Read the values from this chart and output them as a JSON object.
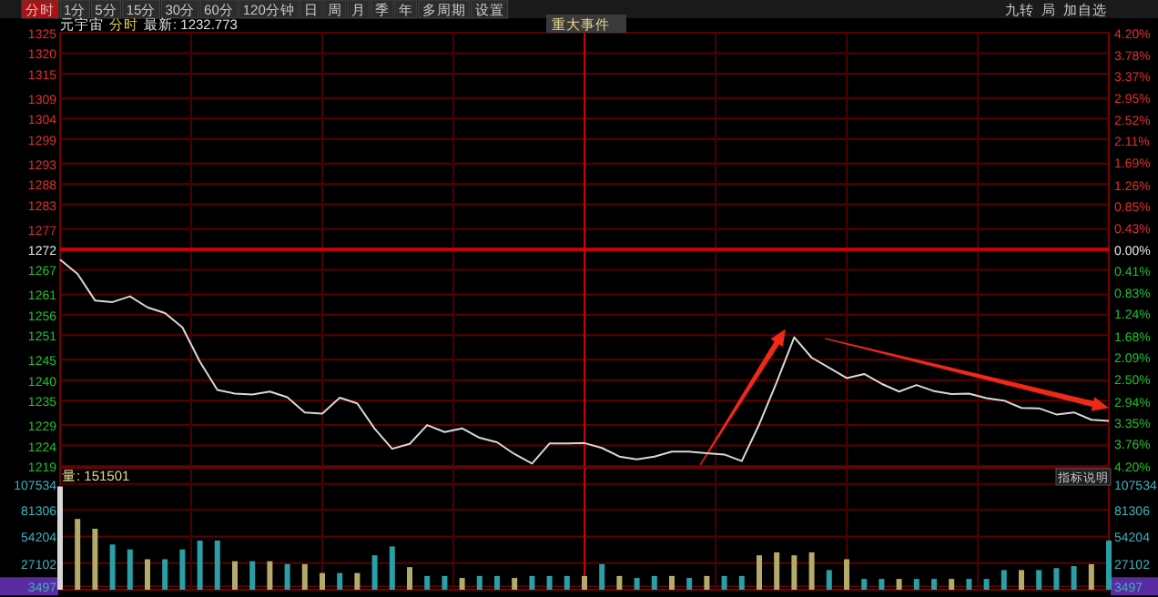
{
  "chart_data": [
    {
      "type": "line",
      "title": "元宇宙",
      "subtitle": "分时",
      "annotations": [
        "分时",
        "1分",
        "5分",
        "15分",
        "30分",
        "60分",
        "120分钟",
        "日",
        "周",
        "月",
        "季",
        "年",
        "多周期",
        "设置",
        "最新: 1232.773",
        "重大事件",
        "九转",
        "局",
        "加自选"
      ],
      "categories": [
        null,
        null,
        null,
        null,
        null,
        null,
        null,
        null,
        null,
        null,
        null,
        null,
        null,
        null,
        null,
        null,
        null,
        null,
        null,
        null,
        null,
        null,
        null,
        null,
        null,
        null,
        null,
        null,
        null,
        null,
        null,
        null,
        null,
        null,
        null,
        null,
        null,
        null,
        null,
        null,
        null,
        null,
        null,
        null,
        null,
        null,
        null,
        null,
        null,
        null,
        null,
        null,
        null,
        null,
        null,
        null,
        null,
        null,
        null,
        null,
        null
      ],
      "series": [
        {
          "color": "#d8d8d8",
          "values": [
            1269.5,
            1266.0,
            1259.5,
            1259.1,
            1260.5,
            1257.8,
            1256.4,
            1252.9,
            1244.5,
            1237.6,
            1236.7,
            1236.5,
            1237.2,
            1235.8,
            1232.1,
            1231.8,
            1235.7,
            1234.3,
            1228.1,
            1223.2,
            1224.4,
            1229.0,
            1227.3,
            1228.2,
            1225.9,
            1224.8,
            1221.9,
            1219.6,
            1224.5,
            1224.5,
            1224.6,
            1223.4,
            1221.3,
            1220.6,
            1221.3,
            1222.5,
            1222.5,
            1222.1,
            1221.8,
            1220.2,
            1229.2,
            1239.5,
            1250.5,
            1245.5,
            1243.0,
            1240.5,
            1241.5,
            1239.1,
            1237.2,
            1238.8,
            1237.3,
            1236.6,
            1236.7,
            1235.6,
            1235.0,
            1233.2,
            1233.1,
            1231.6,
            1232.1,
            1230.3,
            1230.0
          ]
        }
      ],
      "ylim": [
        1219,
        1325
      ],
      "yticks": [
        1219,
        1224,
        1229,
        1235,
        1240,
        1245,
        1251,
        1256,
        1261,
        1267,
        1272,
        1277,
        1283,
        1288,
        1293,
        1299,
        1304,
        1309,
        1315,
        1320,
        1325
      ],
      "y2lim": [
        -4.2,
        4.2
      ],
      "y2ticks": [
        {
          "value": -4.2,
          "label": "4.20%"
        },
        {
          "value": -3.76,
          "label": "3.76%"
        },
        {
          "value": -3.35,
          "label": "3.35%"
        },
        {
          "value": -2.94,
          "label": "2.94%"
        },
        {
          "value": -2.5,
          "label": "2.50%"
        },
        {
          "value": -2.09,
          "label": "2.09%"
        },
        {
          "value": -1.68,
          "label": "1.68%"
        },
        {
          "value": -1.24,
          "label": "1.24%"
        },
        {
          "value": -0.83,
          "label": "0.83%"
        },
        {
          "value": -0.41,
          "label": "0.41%"
        },
        {
          "value": 0,
          "label": "0.00%"
        },
        {
          "value": 0.43,
          "label": "0.43%"
        },
        {
          "value": 0.85,
          "label": "0.85%"
        },
        {
          "value": 1.26,
          "label": "1.26%"
        },
        {
          "value": 1.69,
          "label": "1.69%"
        },
        {
          "value": 2.11,
          "label": "2.11%"
        },
        {
          "value": 2.52,
          "label": "2.52%"
        },
        {
          "value": 2.95,
          "label": "2.95%"
        },
        {
          "value": 3.37,
          "label": "3.37%"
        },
        {
          "value": 3.78,
          "label": "3.78%"
        },
        {
          "value": 4.2,
          "label": "4.20%"
        }
      ],
      "grid": true,
      "tick_labels": "y",
      "ref_lines": [
        {
          "axis": "y",
          "value": 1272,
          "color": "#c80000"
        }
      ]
    },
    {
      "type": "bar",
      "annotations": [
        "量: 151501",
        "指标说明"
      ],
      "categories": [
        null,
        null,
        null,
        null,
        null,
        null,
        null,
        null,
        null,
        null,
        null,
        null,
        null,
        null,
        null,
        null,
        null,
        null,
        null,
        null,
        null,
        null,
        null,
        null,
        null,
        null,
        null,
        null,
        null,
        null,
        null,
        null,
        null,
        null,
        null,
        null,
        null,
        null,
        null,
        null,
        null,
        null,
        null,
        null,
        null,
        null,
        null,
        null,
        null,
        null,
        null,
        null,
        null,
        null,
        null,
        null,
        null,
        null,
        null,
        null,
        null
      ],
      "values": [
        105000,
        72000,
        62000,
        46000,
        41000,
        31000,
        31000,
        41000,
        50000,
        50000,
        29000,
        29000,
        29000,
        26000,
        26000,
        17000,
        17000,
        17000,
        35000,
        44000,
        23000,
        14000,
        14000,
        12000,
        14000,
        14000,
        12000,
        14000,
        14000,
        14000,
        14000,
        26000,
        14000,
        12000,
        14000,
        14000,
        12000,
        14000,
        14000,
        14000,
        35000,
        38000,
        35000,
        38000,
        20000,
        31000,
        11000,
        11000,
        11000,
        11000,
        11000,
        11000,
        11000,
        11000,
        20000,
        20000,
        20000,
        22000,
        24000,
        26000,
        50000
      ],
      "colors": [
        "#d8d8d8",
        "#b5aa6a",
        "#b5aa6a",
        "#2a9fa6",
        "#2a9fa6",
        "#b5aa6a",
        "#2a9fa6",
        "#2a9fa6",
        "#2a9fa6",
        "#2a9fa6",
        "#b5aa6a",
        "#2a9fa6",
        "#b5aa6a",
        "#2a9fa6",
        "#b5aa6a",
        "#b5aa6a",
        "#2a9fa6",
        "#b5aa6a",
        "#2a9fa6",
        "#2a9fa6",
        "#b5aa6a",
        "#2a9fa6",
        "#2a9fa6",
        "#b5aa6a",
        "#2a9fa6",
        "#2a9fa6",
        "#b5aa6a",
        "#2a9fa6",
        "#2a9fa6",
        "#2a9fa6",
        "#b5aa6a",
        "#2a9fa6",
        "#b5aa6a",
        "#2a9fa6",
        "#2a9fa6",
        "#b5aa6a",
        "#2a9fa6",
        "#b5aa6a",
        "#2a9fa6",
        "#2a9fa6",
        "#b5aa6a",
        "#b5aa6a",
        "#b5aa6a",
        "#b5aa6a",
        "#2a9fa6",
        "#b5aa6a",
        "#2a9fa6",
        "#2a9fa6",
        "#b5aa6a",
        "#2a9fa6",
        "#2a9fa6",
        "#b5aa6a",
        "#2a9fa6",
        "#2a9fa6",
        "#2a9fa6",
        "#b5aa6a",
        "#2a9fa6",
        "#2a9fa6",
        "#2a9fa6",
        "#b5aa6a",
        "#2a9fa6"
      ],
      "ylim": [
        0,
        124000
      ],
      "yticks": [
        3497,
        27102,
        54204,
        81306,
        107534
      ],
      "y2lim": [
        0,
        124000
      ],
      "y2ticks": [
        3497,
        27102,
        54204,
        81306,
        107534
      ],
      "grid": true,
      "tick_labels": "y"
    }
  ]
}
